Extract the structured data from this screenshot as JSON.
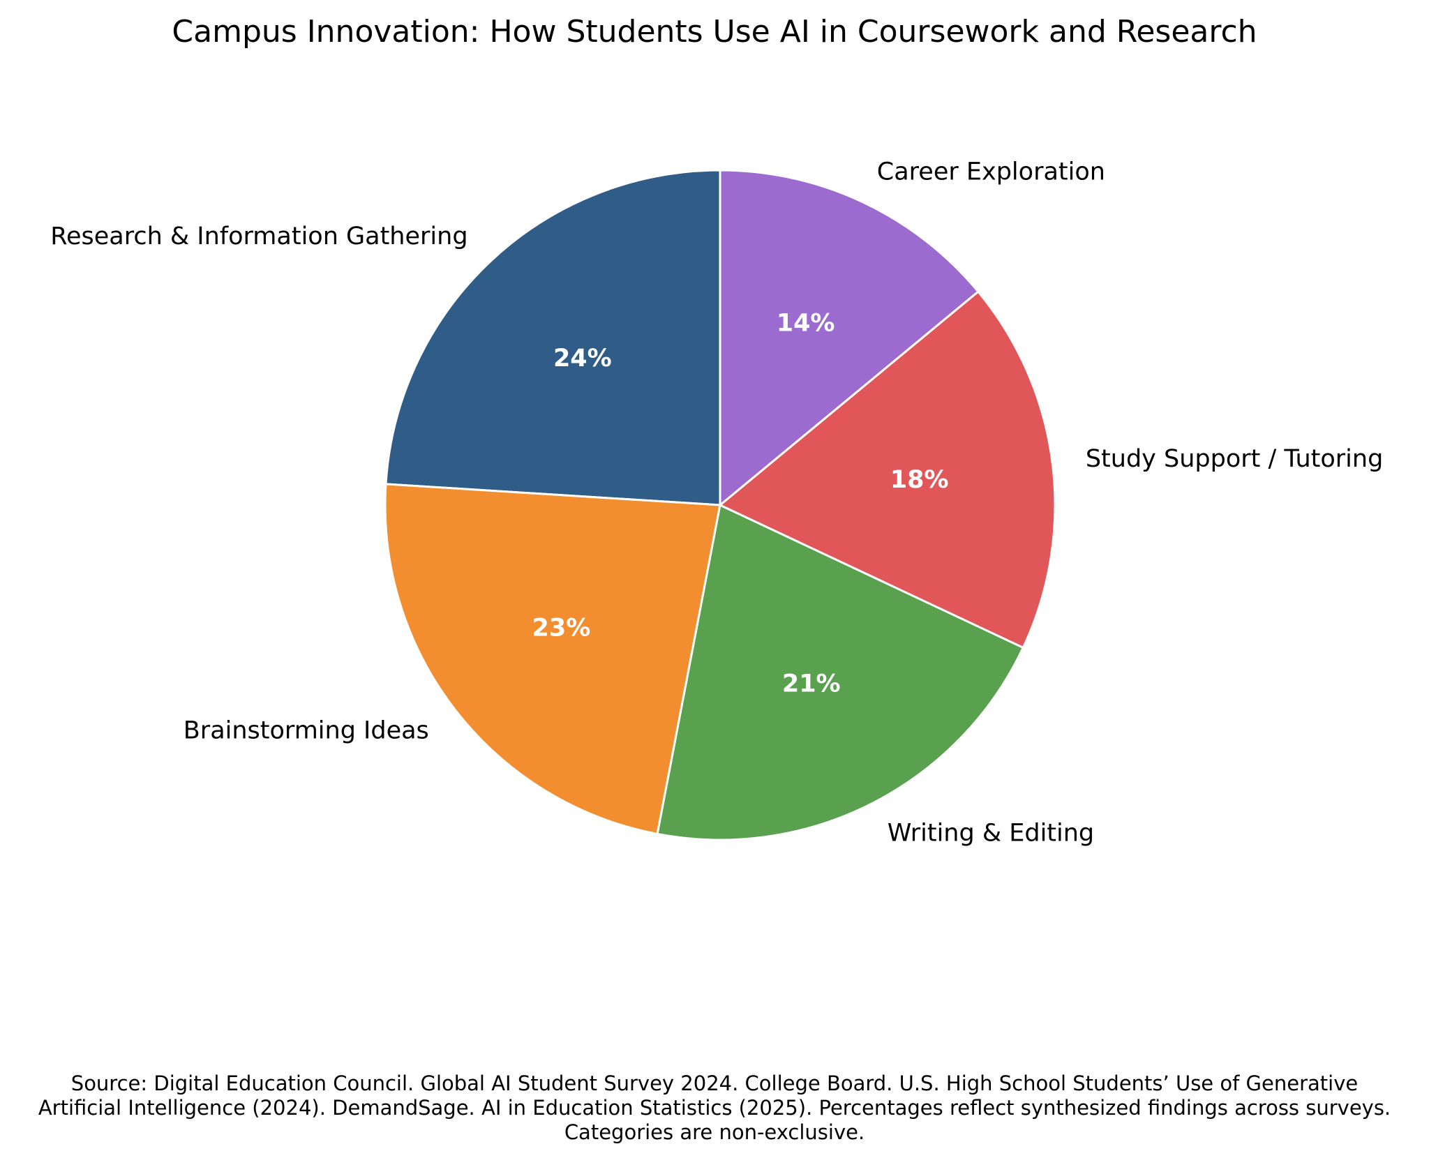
{
  "chart_data": {
    "type": "pie",
    "title": "Campus Innovation: How Students Use AI in Coursework and Research",
    "categories": [
      "Research & Information Gathering",
      "Brainstorming Ideas",
      "Writing & Editing",
      "Study Support / Tutoring",
      "Career Exploration"
    ],
    "values": [
      24,
      23,
      21,
      18,
      14
    ],
    "value_labels": [
      "24%",
      "23%",
      "21%",
      "18%",
      "14%"
    ],
    "colors": [
      "#2f5d87",
      "#f28e2f",
      "#59a14f",
      "#e15759",
      "#9b6bd0"
    ],
    "start_angle_deg": 90,
    "direction": "counterclockwise",
    "legend": "none"
  },
  "footer": {
    "source": "Source: Digital Education Council. Global AI Student Survey 2024. College Board. U.S. High School Students’ Use of Generative Artificial Intelligence (2024). DemandSage. AI in Education Statistics (2025). Percentages reflect synthesized findings across surveys. Categories are non-exclusive."
  }
}
